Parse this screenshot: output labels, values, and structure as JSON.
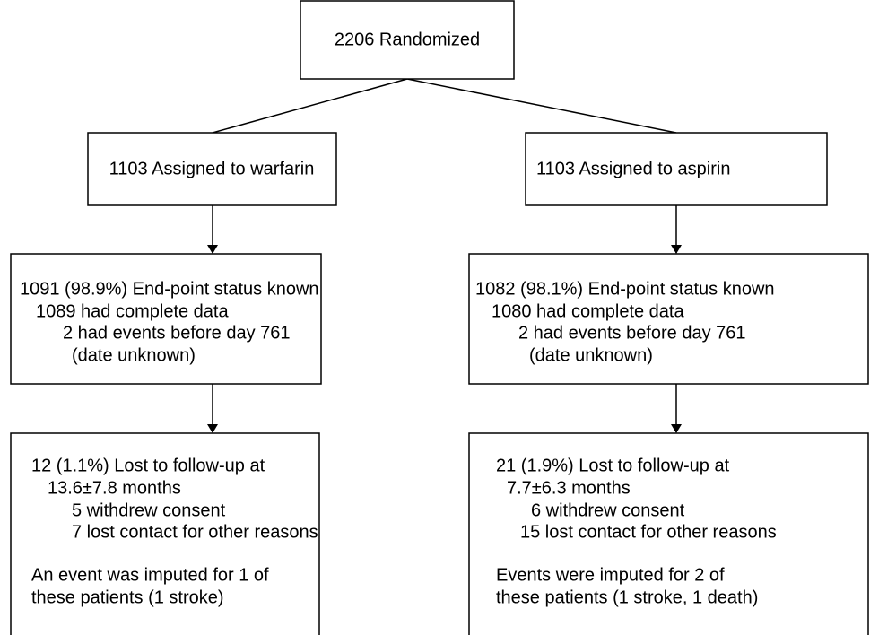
{
  "nodes": [
    {
      "lines": [
        "2206 Randomized"
      ]
    },
    {
      "lines": [
        "1103 Assigned to warfarin"
      ]
    },
    {
      "lines": [
        "1103 Assigned to aspirin"
      ]
    },
    {
      "lines": [
        "1091 (98.9%) End-point status known",
        "1089 had complete data",
        "2 had events before day 761",
        "(date unknown)"
      ]
    },
    {
      "lines": [
        "1082 (98.1%) End-point status known",
        "1080 had complete data",
        "2 had events before day 761",
        "(date unknown)"
      ]
    },
    {
      "lines": [
        "12 (1.1%) Lost to follow-up at",
        "13.6±7.8 months",
        "5 withdrew consent",
        "7 lost contact for other reasons",
        "An event was imputed for 1 of",
        "these patients (1 stroke)"
      ]
    },
    {
      "lines": [
        "21 (1.9%) Lost to follow-up at",
        "7.7±6.3 months",
        "6 withdrew consent",
        "15 lost contact for other reasons",
        "Events were imputed for 2 of",
        "these patients (1 stroke, 1 death)"
      ]
    }
  ]
}
